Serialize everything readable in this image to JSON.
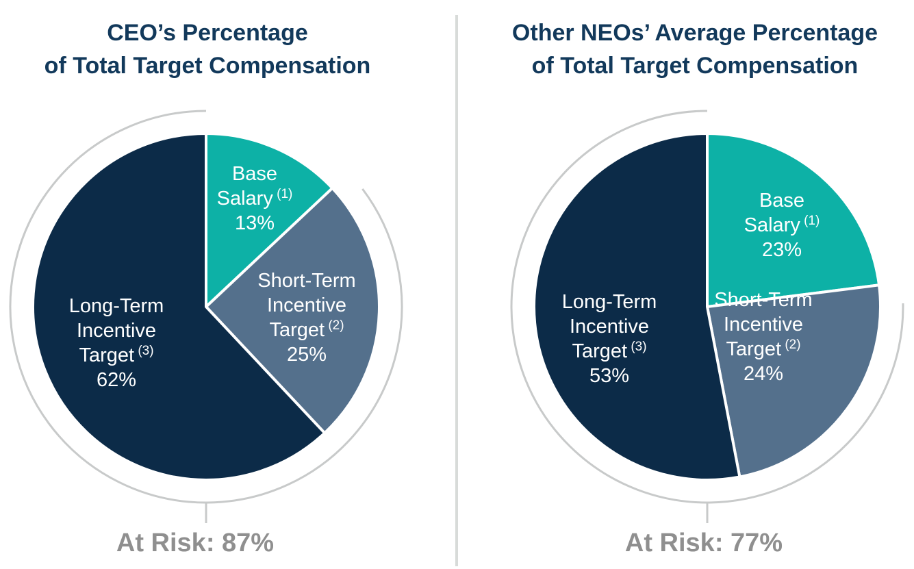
{
  "page": {
    "background_color": "#FFFFFF"
  },
  "colors": {
    "teal": "#0DB1A6",
    "slate": "#54708C",
    "navy": "#0C2B48",
    "title_text": "#12395B",
    "slice_label_text": "#FFFFFF",
    "slice_border": "#FFFFFF",
    "at_risk_text": "#8F8F8F",
    "arc": "#C8CACA",
    "divider": "#D8DBD9"
  },
  "chart_data": [
    {
      "id": "ceo",
      "type": "pie",
      "title": "CEO’s Percentage of Total Target Compensation",
      "title_lines": [
        "CEO’s Percentage",
        "of Total Target Compensation"
      ],
      "units": "percent of total target compensation",
      "start_angle_deg": 0,
      "direction": "clockwise",
      "slices": [
        {
          "name": "Base Salary",
          "footnote": "(1)",
          "value": 13,
          "pct_label": "13%",
          "color_key": "teal",
          "label_lines": [
            {
              "text": "Base"
            },
            {
              "text": "Salary",
              "sup": "(1)"
            },
            {
              "text": "13%"
            }
          ]
        },
        {
          "name": "Short-Term Incentive Target",
          "footnote": "(2)",
          "value": 25,
          "pct_label": "25%",
          "color_key": "slate",
          "label_lines": [
            {
              "text": "Short-Term"
            },
            {
              "text": "Incentive"
            },
            {
              "text": "Target",
              "sup": "(2)"
            },
            {
              "text": "25%"
            }
          ]
        },
        {
          "name": "Long-Term Incentive Target",
          "footnote": "(3)",
          "value": 62,
          "pct_label": "62%",
          "color_key": "navy",
          "label_lines": [
            {
              "text": "Long-Term"
            },
            {
              "text": "Incentive"
            },
            {
              "text": "Target",
              "sup": "(3)"
            },
            {
              "text": "62%"
            }
          ]
        }
      ],
      "at_risk": {
        "text": "At Risk: 87%",
        "value": 87,
        "covers": [
          "Short-Term Incentive Target",
          "Long-Term Incentive Target"
        ]
      }
    },
    {
      "id": "other-neos",
      "type": "pie",
      "title": "Other NEOs’ Average Percentage of Total Target Compensation",
      "title_lines": [
        "Other NEOs’ Average Percentage",
        "of Total Target Compensation"
      ],
      "units": "percent of total target compensation",
      "start_angle_deg": 0,
      "direction": "clockwise",
      "slices": [
        {
          "name": "Base Salary",
          "footnote": "(1)",
          "value": 23,
          "pct_label": "23%",
          "color_key": "teal",
          "label_lines": [
            {
              "text": "Base"
            },
            {
              "text": "Salary",
              "sup": "(1)"
            },
            {
              "text": "23%"
            }
          ]
        },
        {
          "name": "Short-Term Incentive Target",
          "footnote": "(2)",
          "value": 24,
          "pct_label": "24%",
          "color_key": "slate",
          "label_lines": [
            {
              "text": "Short-Term"
            },
            {
              "text": "Incentive"
            },
            {
              "text": "Target",
              "sup": "(2)"
            },
            {
              "text": "24%"
            }
          ]
        },
        {
          "name": "Long-Term Incentive Target",
          "footnote": "(3)",
          "value": 53,
          "pct_label": "53%",
          "color_key": "navy",
          "label_lines": [
            {
              "text": "Long-Term"
            },
            {
              "text": "Incentive"
            },
            {
              "text": "Target",
              "sup": "(3)"
            },
            {
              "text": "53%"
            }
          ]
        }
      ],
      "at_risk": {
        "text": "At Risk: 77%",
        "value": 77,
        "covers": [
          "Short-Term Incentive Target",
          "Long-Term Incentive Target"
        ]
      }
    }
  ]
}
